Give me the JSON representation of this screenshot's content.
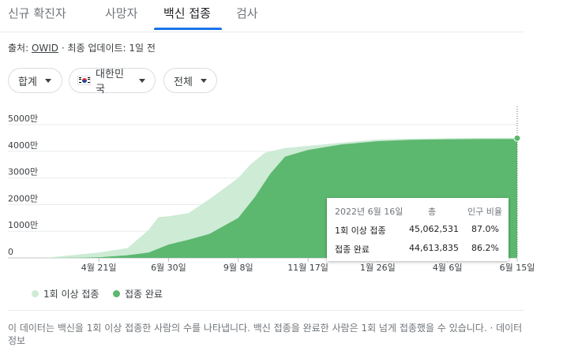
{
  "tabs": [
    {
      "label": "신규 확진자",
      "active": false
    },
    {
      "label": "사망자",
      "active": false
    },
    {
      "label": "백신 접종",
      "active": true
    },
    {
      "label": "검사",
      "active": false
    }
  ],
  "source": {
    "prefix": "출처: ",
    "name": "OWID",
    "suffix": " · 최종 업데이트: 1일 전"
  },
  "filters": {
    "aggregate": "합계",
    "country": "대한민국",
    "country_flag": "kr-flag-icon",
    "range": "전체"
  },
  "colors": {
    "at_least_one": "#cdebd5",
    "fully": "#5cb86f",
    "accent": "#1a73e8"
  },
  "chart_data": {
    "type": "area",
    "title": "",
    "xlabel": "",
    "ylabel": "",
    "y_ticks": [
      "0",
      "1000만",
      "2000만",
      "3000만",
      "4000만",
      "5000만"
    ],
    "x_ticks": [
      "4월 21일",
      "6월 30일",
      "9월 8일",
      "11월 17일",
      "1월 26일",
      "4월 6일",
      "6월 15일"
    ],
    "ylim": [
      0,
      50000000
    ],
    "series": [
      {
        "name": "1회 이상 접종",
        "x": [
          "2021-02-26",
          "2021-03-20",
          "2021-04-21",
          "2021-05-20",
          "2021-06-10",
          "2021-06-20",
          "2021-06-30",
          "2021-07-20",
          "2021-08-10",
          "2021-09-08",
          "2021-09-20",
          "2021-10-05",
          "2021-10-25",
          "2021-11-17",
          "2021-12-20",
          "2022-01-26",
          "2022-03-01",
          "2022-04-06",
          "2022-05-10",
          "2022-06-15"
        ],
        "values": [
          0,
          800000,
          2000000,
          3700000,
          10500000,
          15300000,
          15600000,
          16800000,
          22000000,
          30000000,
          35000000,
          39500000,
          41200000,
          42000000,
          43200000,
          44400000,
          44700000,
          44900000,
          45000000,
          45062531
        ]
      },
      {
        "name": "접종 완료",
        "x": [
          "2021-02-26",
          "2021-04-01",
          "2021-04-21",
          "2021-05-20",
          "2021-06-10",
          "2021-06-30",
          "2021-07-20",
          "2021-08-10",
          "2021-09-08",
          "2021-09-25",
          "2021-10-10",
          "2021-10-25",
          "2021-11-17",
          "2021-12-20",
          "2022-01-26",
          "2022-03-01",
          "2022-04-06",
          "2022-05-10",
          "2022-06-15"
        ],
        "values": [
          0,
          50000,
          200000,
          1000000,
          2000000,
          5000000,
          6800000,
          9000000,
          15000000,
          23000000,
          31500000,
          38000000,
          40500000,
          42500000,
          43800000,
          44300000,
          44500000,
          44600000,
          44613835
        ]
      }
    ],
    "legend_position": "bottom-left",
    "grid": true,
    "highlight_date": "2022-06-15"
  },
  "tooltip": {
    "date": "2022년 6월 16일",
    "col_total": "총",
    "col_ratio": "인구 비율",
    "rows": [
      {
        "label": "1회 이상 접종",
        "total": "45,062,531",
        "ratio": "87.0%"
      },
      {
        "label": "접종 완료",
        "total": "44,613,835",
        "ratio": "86.2%"
      }
    ]
  },
  "legend": [
    {
      "label": "1회 이상 접종"
    },
    {
      "label": "접종 완료"
    }
  ],
  "note": {
    "text": "이 데이터는 백신을 1회 이상 접종한 사람의 수를 나타냅니다. 백신 접종을 완료한 사람은 1회 넘게 접종했을 수 있습니다.",
    "sep": " · ",
    "link": "데이터 정보"
  }
}
